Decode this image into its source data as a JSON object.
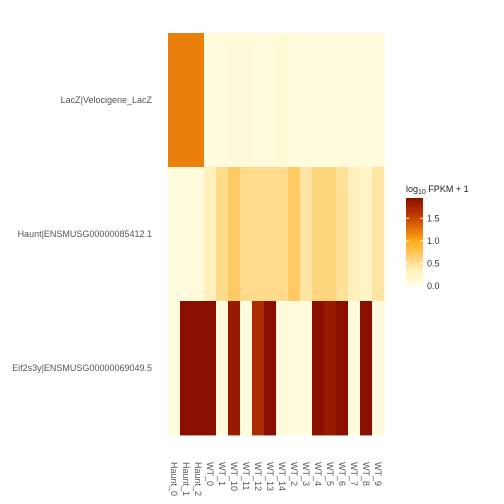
{
  "chart_data": {
    "type": "heatmap",
    "title": "",
    "columns": [
      "Haunt_0",
      "Haunt_1",
      "Haunt_2",
      "WT_0",
      "WT_1",
      "WT_10",
      "WT_11",
      "WT_12",
      "WT_13",
      "WT_14",
      "WT_2",
      "WT_3",
      "WT_4",
      "WT_5",
      "WT_6",
      "WT_7",
      "WT_8",
      "WT_9"
    ],
    "rows": [
      "LacZ|Velocigene_LacZ",
      "Haunt|ENSMUSG00000085412.1",
      "Eif2s3y|ENSMUSG00000069049.5"
    ],
    "values": [
      [
        1.2,
        1.2,
        1.2,
        0.05,
        0.05,
        0.07,
        0.07,
        0.05,
        0.05,
        0.12,
        0.05,
        0.05,
        0.05,
        0.05,
        0.05,
        0.05,
        0.05,
        0.05
      ],
      [
        0.05,
        0.05,
        0.05,
        0.35,
        0.55,
        0.7,
        0.55,
        0.55,
        0.55,
        0.55,
        0.7,
        0.45,
        0.6,
        0.6,
        0.5,
        0.35,
        0.3,
        0.45
      ],
      [
        0.05,
        1.95,
        1.95,
        1.95,
        0.05,
        1.85,
        0.05,
        1.7,
        1.95,
        0.05,
        0.05,
        0.05,
        1.95,
        1.85,
        1.95,
        0.05,
        1.95,
        0.05
      ]
    ],
    "legend": {
      "title_prefix": "log",
      "title_subscript": "10",
      "title_suffix": " FPKM + 1",
      "ticks": [
        "0.0",
        "0.5",
        "1.0",
        "1.5"
      ],
      "tick_values": [
        0,
        0.5,
        1.0,
        1.5
      ],
      "range": [
        0,
        1.95
      ],
      "placement": "right"
    },
    "color_scale": [
      "#fffde0",
      "#fff3c4",
      "#ffcf70",
      "#ffae1a",
      "#e06b05",
      "#b83300",
      "#8a0f00"
    ]
  }
}
